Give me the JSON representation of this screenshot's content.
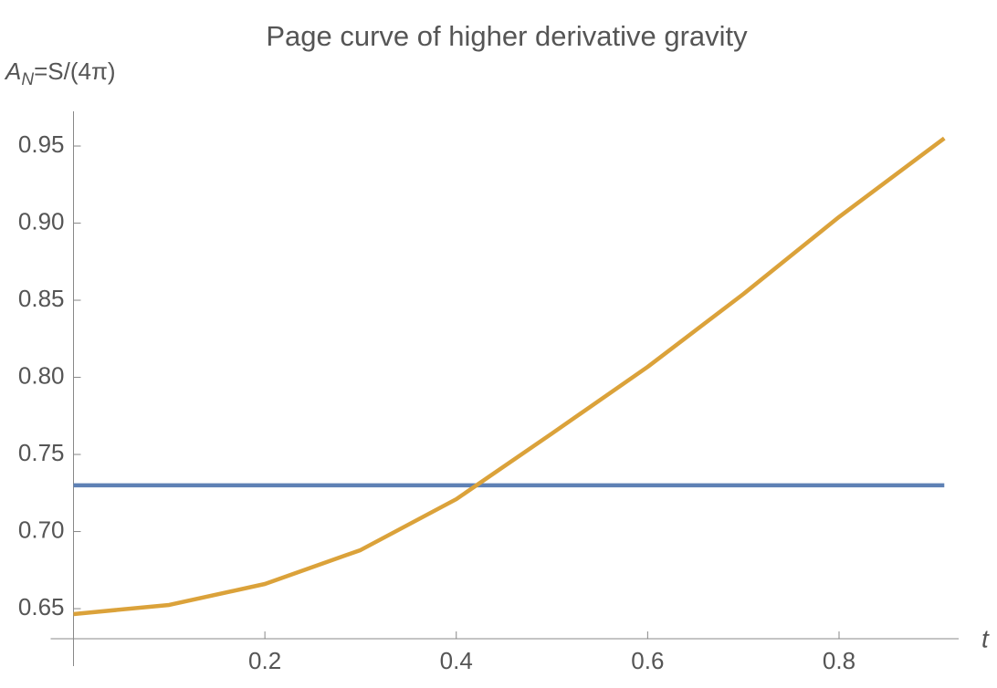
{
  "chart_data": {
    "type": "line",
    "title": "Page curve of higher derivative gravity",
    "y_label": [
      "A",
      "N",
      "=S/(4π)"
    ],
    "x_label": "t",
    "x": [
      0,
      0.1,
      0.2,
      0.3,
      0.4,
      0.5,
      0.6,
      0.7,
      0.8,
      0.91
    ],
    "series": [
      {
        "color": "#5e81b5",
        "values": [
          0.73,
          0.73,
          0.73,
          0.73,
          0.73,
          0.73,
          0.73,
          0.73,
          0.73,
          0.73
        ]
      },
      {
        "color": "#dba23a",
        "values": [
          0.6465,
          0.6524,
          0.666,
          0.688,
          0.721,
          0.7636,
          0.8068,
          0.854,
          0.904,
          0.955
        ]
      }
    ],
    "xlim": [
      0,
      0.925
    ],
    "ylim": [
      0.6305,
      0.9725
    ],
    "xticks": [
      0.2,
      0.4,
      0.6,
      0.8
    ],
    "yticks": [
      0.65,
      {
        "value": 0.7,
        "label": "0.70"
      },
      0.75,
      {
        "value": 0.8,
        "label": "0.80"
      },
      0.85,
      {
        "value": 0.9,
        "label": "0.90"
      },
      0.95
    ]
  }
}
